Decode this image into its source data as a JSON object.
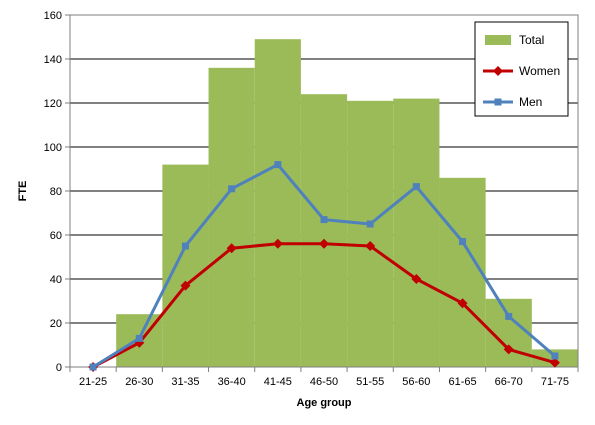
{
  "chart_data": {
    "type": "bar",
    "title": "",
    "xlabel": "Age group",
    "ylabel": "FTE",
    "ylim": [
      0,
      160
    ],
    "yticks": [
      0,
      20,
      40,
      60,
      80,
      100,
      120,
      140,
      160
    ],
    "grid": true,
    "legend_position": "top-right",
    "categories": [
      "21-25",
      "26-30",
      "31-35",
      "36-40",
      "41-45",
      "46-50",
      "51-55",
      "56-60",
      "61-65",
      "66-70",
      "71-75"
    ],
    "series": [
      {
        "name": "Total",
        "kind": "bar",
        "color": "#9bbb59",
        "values": [
          0,
          24,
          92,
          136,
          149,
          124,
          121,
          122,
          86,
          31,
          8
        ]
      },
      {
        "name": "Women",
        "kind": "line",
        "marker": "diamond",
        "color": "#c00000",
        "values": [
          0,
          11,
          37,
          54,
          56,
          56,
          55,
          40,
          29,
          8,
          2
        ]
      },
      {
        "name": "Men",
        "kind": "line",
        "marker": "square",
        "color": "#4f81bd",
        "values": [
          0,
          13,
          55,
          81,
          92,
          67,
          65,
          82,
          57,
          23,
          5
        ]
      }
    ]
  }
}
